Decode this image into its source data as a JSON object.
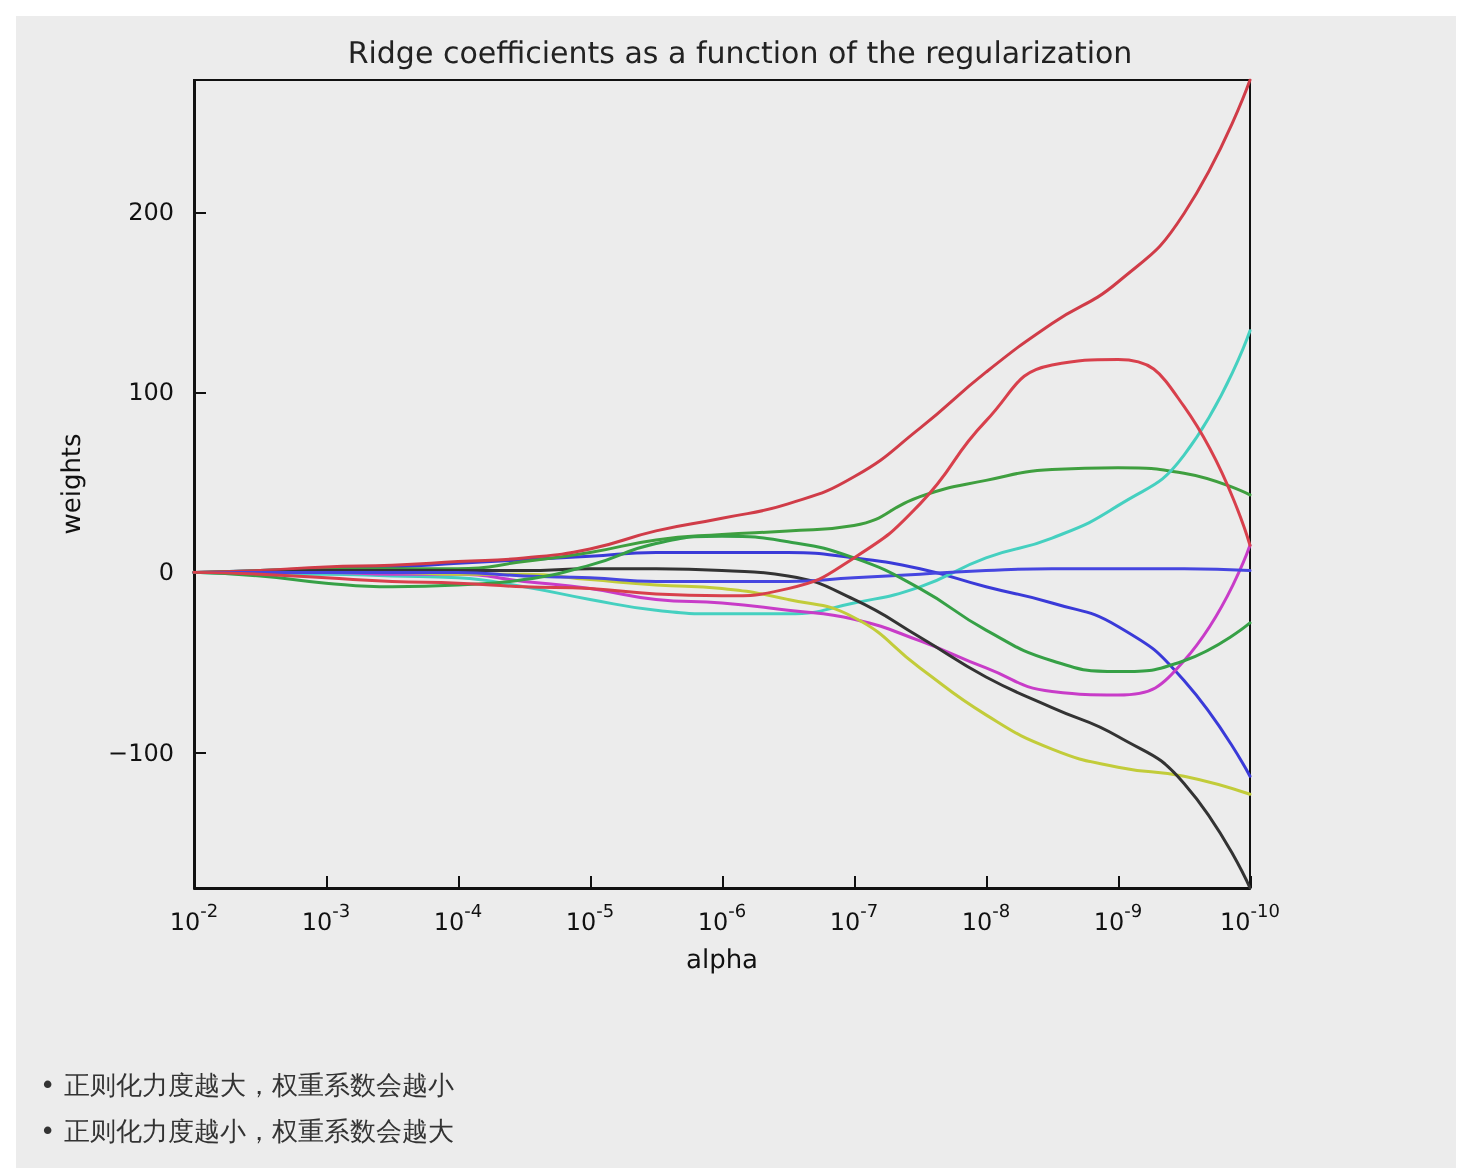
{
  "chart_data": {
    "type": "line",
    "title": "Ridge coefficients as a function of the regularization",
    "xlabel": "alpha",
    "ylabel": "weights",
    "log": "x",
    "grid": false,
    "marker": "none",
    "line_style": "solid",
    "x": [
      0.01,
      0.00316,
      0.001,
      0.000316,
      0.0001,
      3.16e-05,
      1e-05,
      3.16e-06,
      1e-06,
      3.16e-07,
      1e-07,
      3.16e-08,
      1e-08,
      3.16e-09,
      1e-09,
      3.16e-10,
      1e-10
    ],
    "xlim": [
      0.01,
      1e-10
    ],
    "xticks": [
      {
        "value": 0.01,
        "label": "10$^{-2}$"
      },
      {
        "value": 0.001,
        "label": "10$^{-3}$"
      },
      {
        "value": 0.0001,
        "label": "10$^{-4}$"
      },
      {
        "value": 1e-05,
        "label": "10$^{-5}$"
      },
      {
        "value": 1e-06,
        "label": "10$^{-6}$"
      },
      {
        "value": 1e-07,
        "label": "10$^{-7}$"
      },
      {
        "value": 1e-08,
        "label": "10$^{-8}$"
      },
      {
        "value": 1e-09,
        "label": "10$^{-9}$"
      },
      {
        "value": 1e-10,
        "label": "10$^{-10}$"
      }
    ],
    "ylim": [
      -175,
      273
    ],
    "yticks": [
      {
        "value": -100,
        "label": "−100"
      },
      0,
      100,
      200
    ],
    "series": [
      {
        "color": "#3a3ad8",
        "values": [
          0,
          1,
          2,
          3,
          5,
          7,
          9,
          11,
          11,
          11,
          8,
          2,
          -8,
          -17,
          -30,
          -60,
          -113
        ]
      },
      {
        "color": "#3f9f3f",
        "values": [
          0,
          1,
          2,
          2,
          2,
          6,
          11,
          18,
          21,
          23,
          26,
          42,
          51,
          57,
          58,
          55,
          43
        ]
      },
      {
        "color": "#d03c48",
        "values": [
          0,
          1,
          3,
          4,
          6,
          8,
          13,
          23,
          30,
          38,
          53,
          80,
          111,
          138,
          161,
          199,
          273
        ]
      },
      {
        "color": "#45d0c0",
        "values": [
          0,
          -1,
          -1,
          -2,
          -3,
          -8,
          -15,
          -21,
          -23,
          -23,
          -17,
          -8,
          8,
          19,
          37,
          65,
          134
        ]
      },
      {
        "color": "#c83cc8",
        "values": [
          0,
          0,
          0,
          -1,
          -1,
          -5,
          -9,
          -15,
          -17,
          -21,
          -26,
          -38,
          -53,
          -66,
          -68,
          -49,
          15
        ]
      },
      {
        "color": "#c2cc3a",
        "values": [
          null,
          null,
          0,
          0,
          -1,
          -1,
          -4,
          -7,
          -9,
          -15,
          -25,
          -53,
          -79,
          -98,
          -108,
          -113,
          -123
        ]
      },
      {
        "color": "#333333",
        "values": [
          0,
          0,
          1,
          1,
          1,
          1,
          2,
          2,
          1,
          -2,
          -15,
          -36,
          -58,
          -75,
          -91,
          -117,
          -175
        ]
      },
      {
        "color": "#4646e0",
        "values": [
          0,
          0,
          0,
          0,
          0,
          -2,
          -3,
          -5,
          -5,
          -5,
          -3,
          -1,
          1,
          2,
          2,
          2,
          1
        ]
      },
      {
        "color": "#36a046",
        "values": [
          0,
          -2,
          -6,
          -8,
          -7,
          -4,
          4,
          16,
          20,
          17,
          8,
          -9,
          -32,
          -49,
          -55,
          -49,
          -28
        ]
      },
      {
        "color": "#d8404c",
        "values": [
          0,
          -1,
          -3,
          -5,
          -6,
          -8,
          -9,
          -12,
          -13,
          -9,
          8,
          38,
          84,
          115,
          118,
          92,
          15
        ]
      }
    ],
    "annotations": [
      "• 正则化力度越大，权重系数会越小",
      "• 正则化力度越小，权重系数会越大"
    ]
  }
}
